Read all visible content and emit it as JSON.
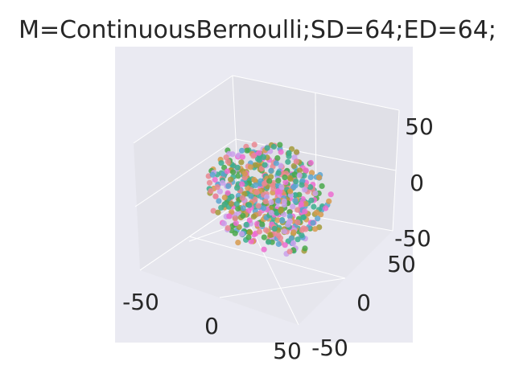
{
  "chart_data": {
    "type": "scatter",
    "projection": "3d",
    "title": "M=ContinuousBernoulli;SD=64;ED=64;",
    "xlabel": "",
    "ylabel": "",
    "zlabel": "",
    "xlim": [
      -60,
      60
    ],
    "ylim": [
      -60,
      60
    ],
    "zlim": [
      -60,
      60
    ],
    "x_ticks": [
      "-50",
      "0",
      "50"
    ],
    "y_ticks": [
      "-50",
      "0",
      "50"
    ],
    "z_ticks": [
      "-50",
      "0",
      "50"
    ],
    "grid": true,
    "legend": "none",
    "background": "#eaeaf2",
    "pane_color": "#e5e5ec",
    "palette": [
      "#ec6cd0",
      "#3cae8e",
      "#5aa4d0",
      "#a39a3a",
      "#c9a0ea",
      "#d69a4e",
      "#49a84a",
      "#e98790"
    ],
    "point_count": 600,
    "distribution": "approx. uniform sphere, radius ~50",
    "sample_points": [
      [
        -40,
        10,
        5
      ],
      [
        35,
        -20,
        10
      ],
      [
        0,
        0,
        45
      ],
      [
        10,
        30,
        -35
      ],
      [
        -25,
        -30,
        -20
      ],
      [
        20,
        40,
        15
      ],
      [
        -45,
        0,
        -10
      ],
      [
        5,
        -45,
        0
      ],
      [
        30,
        10,
        -40
      ],
      [
        -15,
        25,
        35
      ],
      [
        45,
        5,
        -5
      ],
      [
        -5,
        -10,
        -48
      ],
      [
        25,
        -35,
        25
      ],
      [
        -30,
        35,
        -15
      ],
      [
        0,
        50,
        0
      ]
    ]
  }
}
